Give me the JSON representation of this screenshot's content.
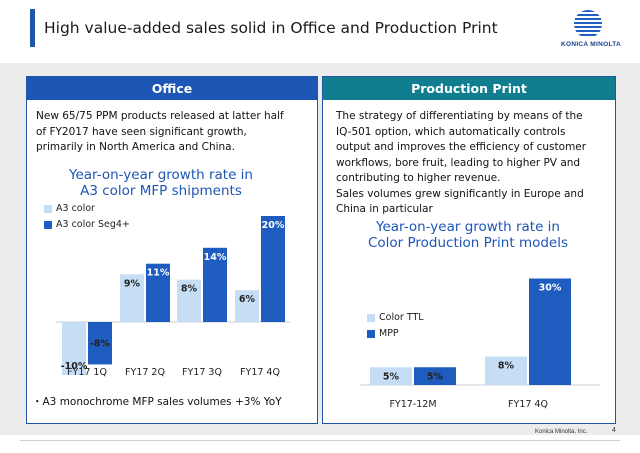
{
  "title": "High value-added sales solid in Office and Production Print",
  "logo_text": "KONICA MINOLTA",
  "footer": {
    "company": "Konica Minolta, Inc.",
    "page": "4"
  },
  "office": {
    "header": "Office",
    "description": [
      "New 65/75 PPM products released at latter half",
      "of FY2017  have seen significant growth,",
      "primarily in North America and China."
    ],
    "chart_title": [
      "Year-on-year growth rate in",
      "A3 color MFP shipments"
    ],
    "note": "・A3 monochrome MFP sales volumes +3% YoY"
  },
  "production": {
    "header": "Production Print",
    "description": [
      "The strategy of differentiating by means of the",
      "IQ-501 option, which automatically controls",
      "output and improves the efficiency of customer",
      "workflows, bore fruit, leading to higher PV and",
      "contributing to higher revenue.",
      "Sales volumes grew significantly in Europe and",
      "China in particular"
    ],
    "chart_title": [
      "Year-on-year growth rate in",
      "Color Production Print models"
    ]
  },
  "colors": {
    "light": "#c5def5",
    "dark": "#1f5cc0",
    "dark_label": "#ffffff",
    "office_header": "#1e56b6",
    "production_header": "#117e90"
  },
  "chart_data": [
    {
      "type": "bar",
      "title": "Year-on-year growth rate in A3 color MFP shipments",
      "categories": [
        "FY17 1Q",
        "FY17 2Q",
        "FY17 3Q",
        "FY17 4Q"
      ],
      "series": [
        {
          "name": "A3 color",
          "values": [
            -10,
            9,
            8,
            6
          ],
          "labels": [
            "-10%",
            "9%",
            "8%",
            "6%"
          ]
        },
        {
          "name": "A3 color Seg4+",
          "values": [
            -8,
            11,
            14,
            20
          ],
          "labels": [
            "-8%",
            "11%",
            "14%",
            "20%"
          ]
        }
      ],
      "legend": "top-left",
      "ylim": [
        -11,
        21
      ]
    },
    {
      "type": "bar",
      "title": "Year-on-year growth rate in Color Production Print models",
      "categories": [
        "FY17-12M",
        "FY17 4Q"
      ],
      "series": [
        {
          "name": "Color TTL",
          "values": [
            5,
            8
          ],
          "labels": [
            "5%",
            "8%"
          ]
        },
        {
          "name": "MPP",
          "values": [
            5,
            30
          ],
          "labels": [
            "5%",
            "30%"
          ]
        }
      ],
      "legend": "left",
      "ylim": [
        0,
        31
      ]
    }
  ]
}
